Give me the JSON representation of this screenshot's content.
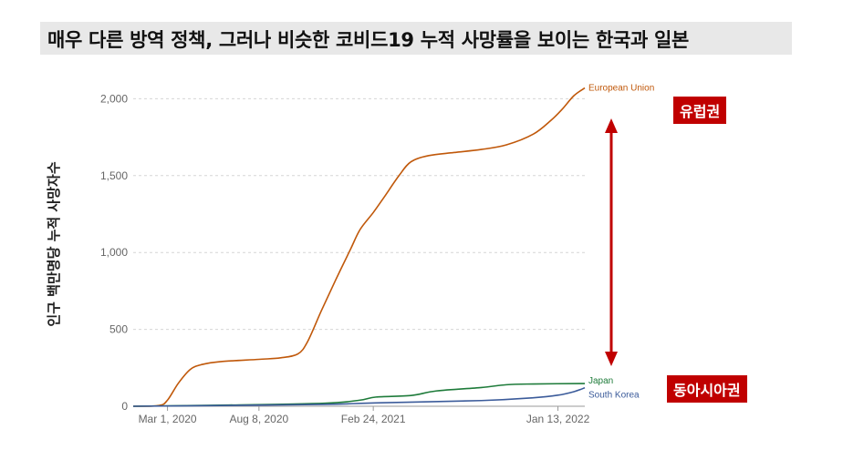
{
  "title": "매우 다른 방역 정책, 그러나 비슷한 코비드19 누적 사망률을 보이는 한국과 일본",
  "badges": {
    "europe": "유럽권",
    "east_asia": "동아시아권"
  },
  "colors": {
    "eu": "#c0580a",
    "japan": "#1e7b3a",
    "korea": "#3b5b9a",
    "arrow": "#c00000",
    "badge": "#c00000"
  },
  "chart_data": {
    "type": "line",
    "title": "",
    "xlabel": "",
    "ylabel": "인구 백만명당 누적 사망자수",
    "ylim": [
      0,
      2100
    ],
    "yticks": [
      0,
      500,
      1000,
      1500,
      2000
    ],
    "ytick_labels": [
      "0",
      "500",
      "1,000",
      "1,500",
      "2,000"
    ],
    "xlim": [
      "2020-01-01",
      "2022-03-01"
    ],
    "xticks": [
      "2020-03-01",
      "2020-08-08",
      "2021-02-24",
      "2022-01-13"
    ],
    "xtick_labels": [
      "Mar 1, 2020",
      "Aug 8, 2020",
      "Feb 24, 2021",
      "Jan 13, 2022"
    ],
    "grid": true,
    "series": [
      {
        "name": "European Union",
        "points": [
          [
            "2020-01-01",
            0
          ],
          [
            "2020-02-15",
            5
          ],
          [
            "2020-03-01",
            40
          ],
          [
            "2020-03-20",
            150
          ],
          [
            "2020-04-10",
            240
          ],
          [
            "2020-05-01",
            272
          ],
          [
            "2020-06-01",
            290
          ],
          [
            "2020-08-08",
            305
          ],
          [
            "2020-09-15",
            315
          ],
          [
            "2020-10-15",
            340
          ],
          [
            "2020-11-01",
            420
          ],
          [
            "2020-11-25",
            620
          ],
          [
            "2020-12-20",
            820
          ],
          [
            "2021-01-15",
            1020
          ],
          [
            "2021-02-01",
            1150
          ],
          [
            "2021-02-24",
            1260
          ],
          [
            "2021-03-15",
            1360
          ],
          [
            "2021-04-10",
            1500
          ],
          [
            "2021-05-01",
            1590
          ],
          [
            "2021-06-01",
            1630
          ],
          [
            "2021-07-15",
            1650
          ],
          [
            "2021-09-01",
            1670
          ],
          [
            "2021-10-15",
            1700
          ],
          [
            "2021-12-01",
            1770
          ],
          [
            "2022-01-01",
            1860
          ],
          [
            "2022-01-20",
            1930
          ],
          [
            "2022-02-10",
            2020
          ],
          [
            "2022-03-01",
            2070
          ]
        ]
      },
      {
        "name": "Japan",
        "points": [
          [
            "2020-01-01",
            0
          ],
          [
            "2020-06-01",
            7
          ],
          [
            "2020-12-01",
            20
          ],
          [
            "2021-02-01",
            40
          ],
          [
            "2021-03-01",
            60
          ],
          [
            "2021-05-01",
            70
          ],
          [
            "2021-06-15",
            100
          ],
          [
            "2021-09-01",
            122
          ],
          [
            "2021-10-15",
            140
          ],
          [
            "2021-12-01",
            145
          ],
          [
            "2022-03-01",
            148
          ]
        ]
      },
      {
        "name": "South Korea",
        "points": [
          [
            "2020-01-01",
            0
          ],
          [
            "2020-06-01",
            5
          ],
          [
            "2020-12-01",
            12
          ],
          [
            "2021-03-01",
            22
          ],
          [
            "2021-09-01",
            37
          ],
          [
            "2021-12-01",
            55
          ],
          [
            "2022-01-13",
            72
          ],
          [
            "2022-02-10",
            95
          ],
          [
            "2022-03-01",
            120
          ]
        ]
      }
    ]
  }
}
